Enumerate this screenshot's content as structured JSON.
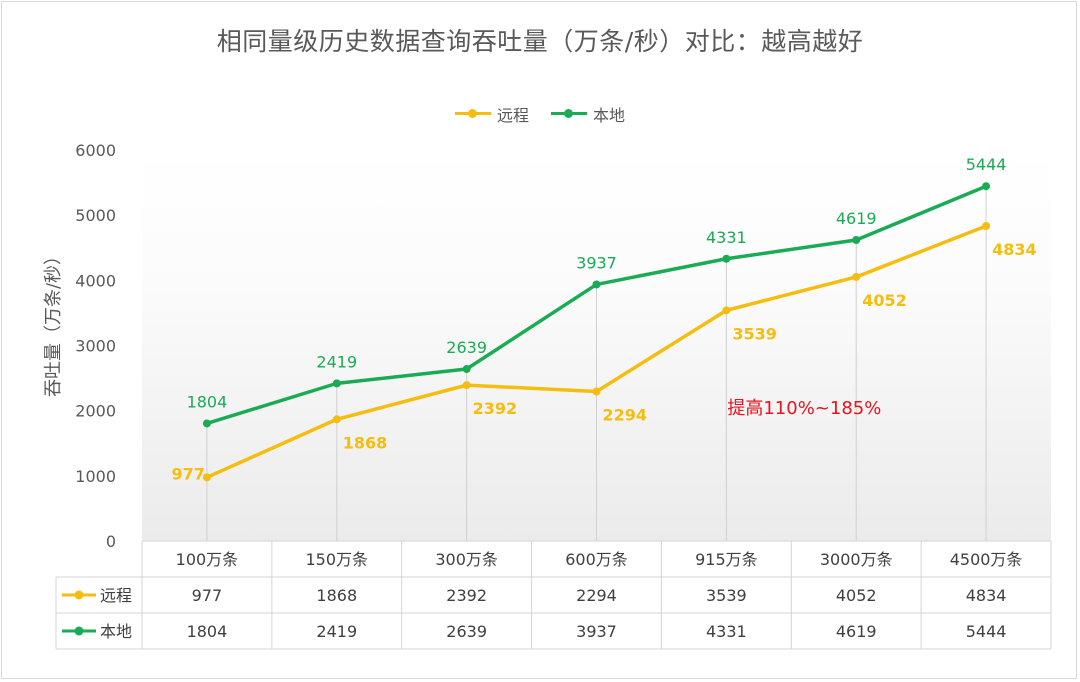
{
  "title": "相同量级历史数据查询吞吐量（万条/秒）对比：越高越好",
  "colors": {
    "remote": "#f5bd0f",
    "local": "#1aab55",
    "annotation": "#e6141e"
  },
  "chart_data": {
    "type": "line",
    "title": "相同量级历史数据查询吞吐量（万条/秒）对比：越高越好",
    "ylabel": "吞吐量（万条/秒）",
    "xlabel": "",
    "ylim": [
      0,
      6000
    ],
    "yticks": [
      0,
      1000,
      2000,
      3000,
      4000,
      5000,
      6000
    ],
    "categories": [
      "100万条",
      "150万条",
      "300万条",
      "600万条",
      "915万条",
      "3000万条",
      "4500万条"
    ],
    "series": [
      {
        "name": "远程",
        "key": "remote",
        "values": [
          977,
          1868,
          2392,
          2294,
          3539,
          4052,
          4834
        ]
      },
      {
        "name": "本地",
        "key": "local",
        "values": [
          1804,
          2419,
          2639,
          3937,
          4331,
          4619,
          5444
        ]
      }
    ],
    "annotation": "提高110%~185%",
    "legend_position": "top-center",
    "data_table": true
  }
}
